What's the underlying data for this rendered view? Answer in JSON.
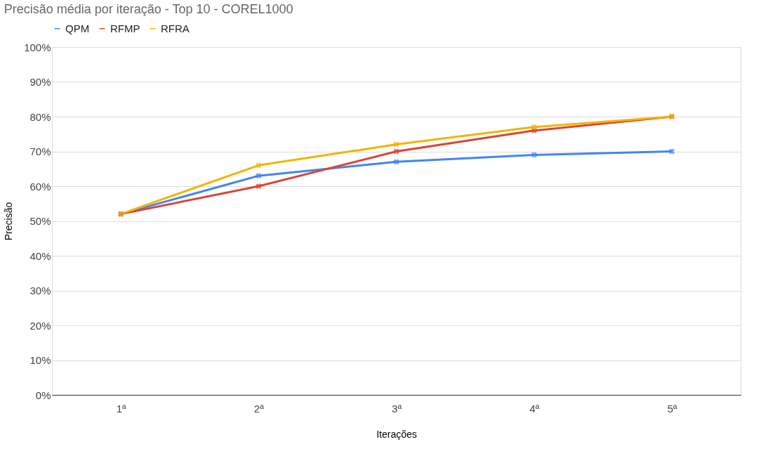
{
  "chart_data": {
    "type": "line",
    "title": "Precisão média por iteração - Top 10 - COREL1000",
    "xlabel": "Iterações",
    "ylabel": "Precisão",
    "categories": [
      "1ª",
      "2ª",
      "3ª",
      "4ª",
      "5ª"
    ],
    "series": [
      {
        "name": "QPM",
        "color": "#4285f4",
        "values": [
          52,
          63,
          67,
          69,
          70
        ]
      },
      {
        "name": "RFMP",
        "color": "#db4437",
        "values": [
          52,
          60,
          70,
          76,
          80
        ]
      },
      {
        "name": "RFRA",
        "color": "#f4b400",
        "values": [
          52,
          66,
          72,
          77,
          80
        ]
      }
    ],
    "ylim": [
      0,
      100
    ],
    "yticks": [
      {
        "value": 0,
        "label": "0%"
      },
      {
        "value": 10,
        "label": "10%"
      },
      {
        "value": 20,
        "label": "20%"
      },
      {
        "value": 30,
        "label": "30%"
      },
      {
        "value": 40,
        "label": "40%"
      },
      {
        "value": 50,
        "label": "50%"
      },
      {
        "value": 60,
        "label": "60%"
      },
      {
        "value": 70,
        "label": "70%"
      },
      {
        "value": 80,
        "label": "80%"
      },
      {
        "value": 90,
        "label": "90%"
      },
      {
        "value": 100,
        "label": "100%"
      }
    ],
    "grid": "y",
    "legend": "top",
    "marker": "cross",
    "line_style": "solid"
  }
}
